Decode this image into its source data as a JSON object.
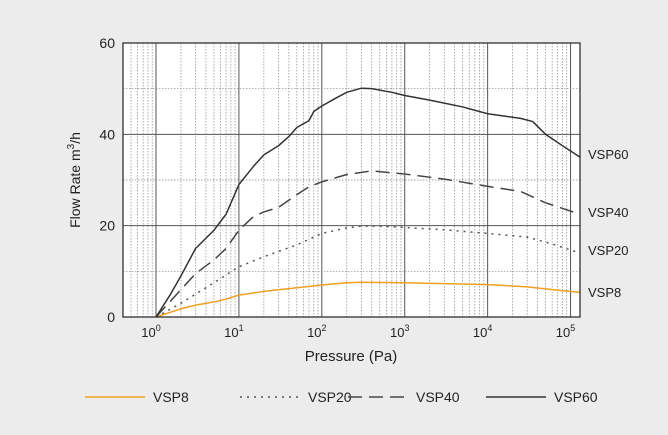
{
  "chart_data": {
    "type": "line",
    "xlabel": "Pressure (Pa)",
    "ylabel": "Flow Rate",
    "ylabel_unit": "m",
    "ylabel_unit_sup": "3",
    "ylabel_unit_tail": "/h",
    "x_scale": "log",
    "xlim": [
      0.4,
      130000
    ],
    "ylim": [
      0,
      60
    ],
    "grid": true,
    "legend_position": "bottom",
    "x_ticks": [
      {
        "value": 1,
        "base": "10",
        "exp": "0"
      },
      {
        "value": 10,
        "base": "10",
        "exp": "1"
      },
      {
        "value": 100,
        "base": "10",
        "exp": "2"
      },
      {
        "value": 1000,
        "base": "10",
        "exp": "3"
      },
      {
        "value": 10000,
        "base": "10",
        "exp": "4"
      },
      {
        "value": 100000,
        "base": "10",
        "exp": "5"
      }
    ],
    "y_ticks": [
      {
        "value": 0,
        "label": "0"
      },
      {
        "value": 20,
        "label": "20"
      },
      {
        "value": 40,
        "label": "40"
      },
      {
        "value": 60,
        "label": "60"
      }
    ],
    "series": [
      {
        "name": "VSP8",
        "color": "#f0a020",
        "dash": "",
        "end_label": "VSP8",
        "points": [
          [
            1,
            0
          ],
          [
            2,
            1.8
          ],
          [
            3,
            2.6
          ],
          [
            5,
            3.3
          ],
          [
            7,
            3.9
          ],
          [
            10,
            4.8
          ],
          [
            20,
            5.6
          ],
          [
            50,
            6.4
          ],
          [
            100,
            7.0
          ],
          [
            200,
            7.5
          ],
          [
            300,
            7.6
          ],
          [
            1000,
            7.5
          ],
          [
            3000,
            7.3
          ],
          [
            10000,
            7.1
          ],
          [
            30000,
            6.6
          ],
          [
            60000,
            6.0
          ],
          [
            130000,
            5.4
          ]
        ]
      },
      {
        "name": "VSP20",
        "color": "#555555",
        "dash": "2,5",
        "end_label": "VSP20",
        "points": [
          [
            1,
            0
          ],
          [
            2,
            3
          ],
          [
            3,
            5
          ],
          [
            5,
            7.5
          ],
          [
            7,
            9.2
          ],
          [
            10,
            11
          ],
          [
            20,
            13.2
          ],
          [
            50,
            15.8
          ],
          [
            100,
            18.3
          ],
          [
            200,
            19.5
          ],
          [
            300,
            19.9
          ],
          [
            500,
            19.9
          ],
          [
            1000,
            19.6
          ],
          [
            3000,
            19.1
          ],
          [
            10000,
            18.3
          ],
          [
            30000,
            17.5
          ],
          [
            60000,
            16
          ],
          [
            130000,
            14
          ]
        ]
      },
      {
        "name": "VSP40",
        "color": "#444444",
        "dash": "14,7",
        "end_label": "VSP40",
        "points": [
          [
            1,
            0
          ],
          [
            2,
            6
          ],
          [
            3,
            9.5
          ],
          [
            5,
            12.5
          ],
          [
            7,
            15
          ],
          [
            10,
            19
          ],
          [
            15,
            22
          ],
          [
            20,
            23
          ],
          [
            30,
            24
          ],
          [
            50,
            26.8
          ],
          [
            70,
            28.5
          ],
          [
            100,
            29.6
          ],
          [
            200,
            31.2
          ],
          [
            400,
            32
          ],
          [
            1000,
            31.3
          ],
          [
            3000,
            30.2
          ],
          [
            10000,
            28.6
          ],
          [
            25000,
            27.5
          ],
          [
            50000,
            25
          ],
          [
            130000,
            22.5
          ]
        ]
      },
      {
        "name": "VSP60",
        "color": "#333333",
        "dash": "",
        "end_label": "VSP60",
        "points": [
          [
            1,
            0
          ],
          [
            1.5,
            5
          ],
          [
            2,
            9
          ],
          [
            3,
            15
          ],
          [
            5,
            19
          ],
          [
            7,
            22.5
          ],
          [
            10,
            29
          ],
          [
            15,
            33
          ],
          [
            20,
            35.5
          ],
          [
            30,
            37.5
          ],
          [
            40,
            39.5
          ],
          [
            50,
            41.5
          ],
          [
            70,
            43
          ],
          [
            80,
            45
          ],
          [
            100,
            46.2
          ],
          [
            150,
            48
          ],
          [
            200,
            49.2
          ],
          [
            300,
            50.1
          ],
          [
            400,
            50.0
          ],
          [
            700,
            49.2
          ],
          [
            1000,
            48.5
          ],
          [
            2000,
            47.5
          ],
          [
            5000,
            46
          ],
          [
            10000,
            44.5
          ],
          [
            25000,
            43.5
          ],
          [
            35000,
            42.8
          ],
          [
            50000,
            40
          ],
          [
            80000,
            37.5
          ],
          [
            130000,
            35
          ]
        ]
      }
    ]
  }
}
